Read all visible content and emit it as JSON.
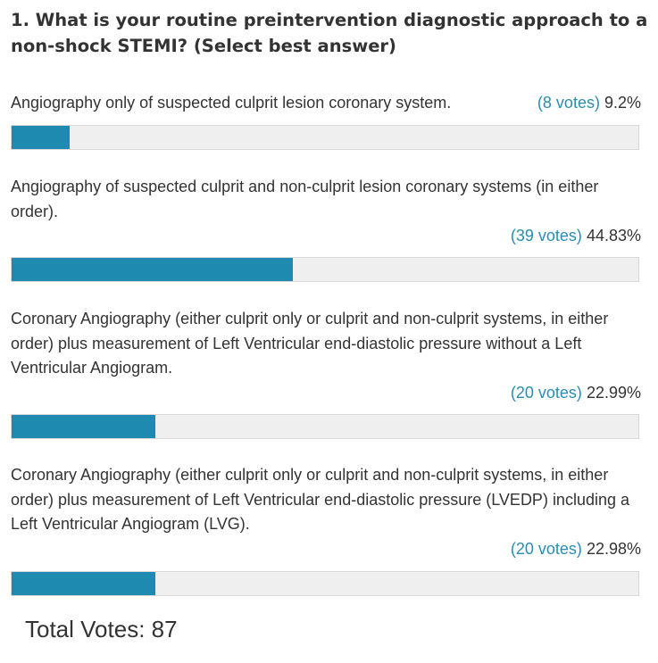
{
  "question": "1. What is your routine preintervention diagnostic approach to a non-shock STEMI? (Select best answer)",
  "options": [
    {
      "label": "Angiography only of suspected culprit lesion coronary system.",
      "votes": "(8 votes)",
      "percent": "9.2%",
      "fraction": 0.092
    },
    {
      "label": "Angiography of suspected culprit and non-culprit lesion coronary systems (in either order).",
      "votes": "(39 votes)",
      "percent": "44.83%",
      "fraction": 0.4483
    },
    {
      "label": "Coronary Angiography (either culprit only or culprit and non-culprit systems, in either order) plus measurement of Left Ventricular end-diastolic pressure without a Left Ventricular Angiogram.",
      "votes": "(20 votes)",
      "percent": "22.99%",
      "fraction": 0.2299
    },
    {
      "label": "Coronary Angiography (either culprit only or culprit and non-culprit systems, in either order) plus measurement of Left Ventricular end-diastolic pressure (LVEDP) including a Left Ventricular Angiogram (LVG).",
      "votes": "(20 votes)",
      "percent": "22.98%",
      "fraction": 0.2298
    }
  ],
  "total": "Total Votes: 87",
  "colors": {
    "bar_fill": "#1f8ab0",
    "bar_track": "#efefef",
    "votes_text": "#2a8db0"
  }
}
